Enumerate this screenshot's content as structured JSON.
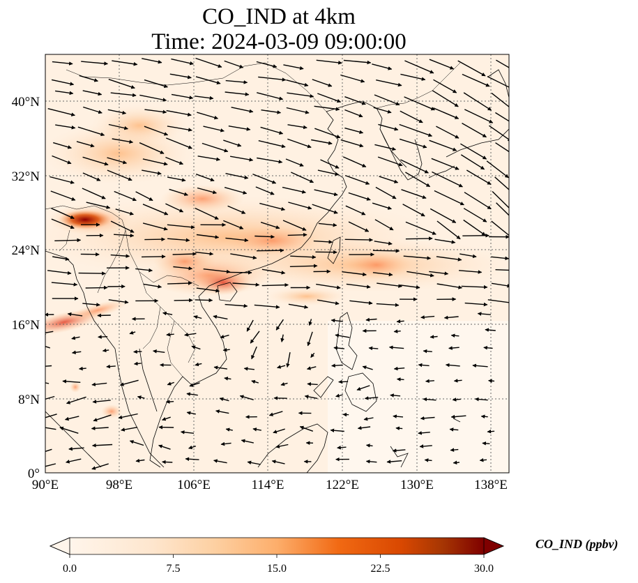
{
  "title_line1": "CO_IND at 4km",
  "title_line2": "Time: 2024-03-09 09:00:00",
  "lon_ticks": [
    "90°E",
    "98°E",
    "106°E",
    "114°E",
    "122°E",
    "130°E",
    "138°E"
  ],
  "lat_ticks": [
    "0°",
    "8°N",
    "16°N",
    "24°N",
    "32°N",
    "40°N"
  ],
  "colorbar": {
    "label": "CO_IND (ppbv)",
    "ticks": [
      "0.0",
      "7.5",
      "15.0",
      "22.5",
      "30.0"
    ],
    "colors": [
      "#fff5eb",
      "#fdd7b0",
      "#fdae6b",
      "#f16913",
      "#d94801",
      "#8c0000",
      "#7f0000"
    ]
  },
  "chart_data": {
    "type": "heatmap",
    "variable": "CO_IND",
    "units": "ppbv",
    "lon_range": [
      90,
      140
    ],
    "lat_range": [
      0,
      45
    ],
    "value_range": [
      0,
      30
    ],
    "plumes": [
      {
        "lon": 94.5,
        "lat": 27.5,
        "value": 28
      },
      {
        "lon": 91.0,
        "lat": 16.0,
        "value": 20
      },
      {
        "lon": 108.5,
        "lat": 20.5,
        "value": 15
      },
      {
        "lon": 104.0,
        "lat": 22.5,
        "value": 12
      },
      {
        "lon": 112.0,
        "lat": 29.0,
        "value": 10
      },
      {
        "lon": 126.0,
        "lat": 22.5,
        "value": 9
      },
      {
        "lon": 98.0,
        "lat": 30.0,
        "value": 8
      }
    ]
  }
}
